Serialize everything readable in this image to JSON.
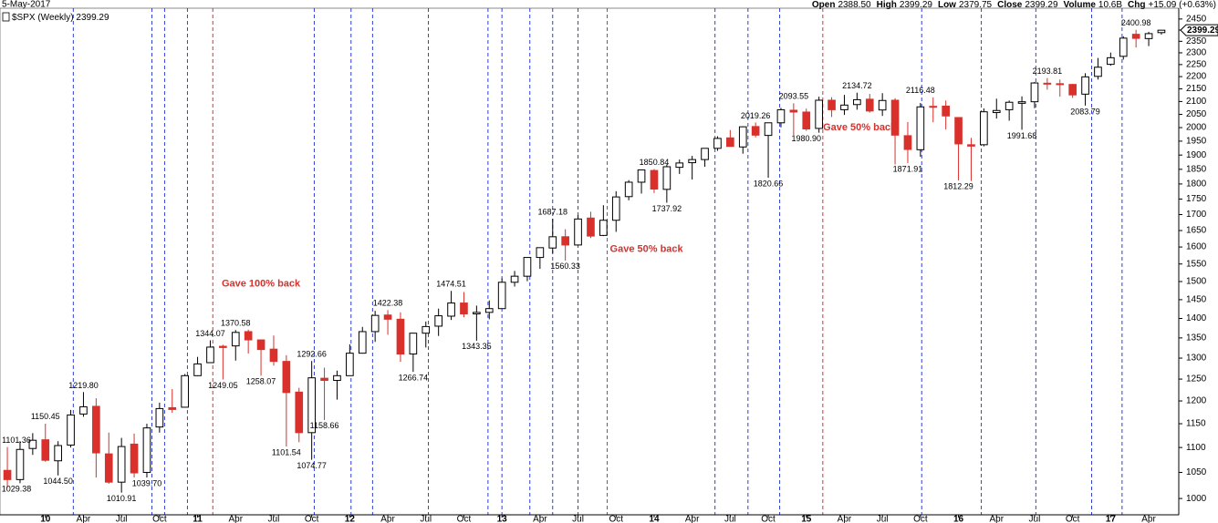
{
  "chart_data": {
    "type": "candlestick",
    "date": "5-May-2017",
    "header": [
      {
        "name": "Open",
        "value": "2388.50"
      },
      {
        "name": "High",
        "value": "2399.29"
      },
      {
        "name": "Low",
        "value": "2379.75"
      },
      {
        "name": "Close",
        "value": "2399.29"
      },
      {
        "name": "Volume",
        "value": "10.6B"
      },
      {
        "name": "Chg",
        "value": "+15.09 (+0.63%)"
      }
    ],
    "legend": "$SPX (Weekly)",
    "last_price": 2399.29,
    "log_scale": true,
    "up_color": "#000000",
    "down_color": "#d9302c",
    "categories": [
      "2009-10",
      "2009-11",
      "2009-12",
      "2010-01",
      "2010-02",
      "2010-03",
      "2010-04",
      "2010-05",
      "2010-06",
      "2010-07",
      "2010-08",
      "2010-09",
      "2010-10",
      "2010-11",
      "2010-12",
      "2011-01",
      "2011-02",
      "2011-03",
      "2011-04",
      "2011-05",
      "2011-06",
      "2011-07",
      "2011-08",
      "2011-09",
      "2011-10",
      "2011-11",
      "2011-12",
      "2012-01",
      "2012-02",
      "2012-03",
      "2012-04",
      "2012-05",
      "2012-06",
      "2012-07",
      "2012-08",
      "2012-09",
      "2012-10",
      "2012-11",
      "2012-12",
      "2013-01",
      "2013-02",
      "2013-03",
      "2013-04",
      "2013-05",
      "2013-06",
      "2013-07",
      "2013-08",
      "2013-09",
      "2013-10",
      "2013-11",
      "2013-12",
      "2014-01",
      "2014-02",
      "2014-03",
      "2014-04",
      "2014-05",
      "2014-06",
      "2014-07",
      "2014-08",
      "2014-09",
      "2014-10",
      "2014-11",
      "2014-12",
      "2015-01",
      "2015-02",
      "2015-03",
      "2015-04",
      "2015-05",
      "2015-06",
      "2015-07",
      "2015-08",
      "2015-09",
      "2015-10",
      "2015-11",
      "2015-12",
      "2016-01",
      "2016-02",
      "2016-03",
      "2016-04",
      "2016-05",
      "2016-06",
      "2016-07",
      "2016-08",
      "2016-09",
      "2016-10",
      "2016-11",
      "2016-12",
      "2017-01",
      "2017-02",
      "2017-03",
      "2017-04",
      "2017-05"
    ],
    "open": [
      1054,
      1036,
      1098,
      1116,
      1073,
      1105,
      1171,
      1188,
      1087,
      1031,
      1107,
      1050,
      1143,
      1185,
      1186,
      1258,
      1289,
      1329,
      1330,
      1366,
      1345,
      1322,
      1292,
      1220,
      1131,
      1252,
      1247,
      1258,
      1312,
      1366,
      1409,
      1398,
      1310,
      1362,
      1380,
      1406,
      1441,
      1412,
      1416,
      1426,
      1498,
      1515,
      1569,
      1597,
      1631,
      1606,
      1689,
      1635,
      1682,
      1758,
      1806,
      1846,
      1782,
      1857,
      1873,
      1884,
      1924,
      1962,
      1929,
      2004,
      1971,
      2018,
      2066,
      2059,
      1997,
      2105,
      2068,
      2088,
      2109,
      2067,
      2105,
      1970,
      1919,
      2081,
      2082,
      2038,
      1937,
      1937,
      2057,
      2068,
      2093,
      2099,
      2173,
      2171,
      2168,
      2129,
      2201,
      2251,
      2285,
      2381,
      2362,
      2388.5
    ],
    "high": [
      1101,
      1113,
      1130,
      1150,
      1113,
      1180,
      1220,
      1206,
      1131,
      1120,
      1129,
      1150,
      1196,
      1227,
      1262,
      1303,
      1344,
      1333,
      1370,
      1371,
      1346,
      1356,
      1307,
      1230,
      1293,
      1277,
      1270,
      1334,
      1378,
      1420,
      1422,
      1416,
      1363,
      1392,
      1426,
      1474,
      1471,
      1434,
      1448,
      1509,
      1530,
      1570,
      1597,
      1687,
      1654,
      1698,
      1709,
      1730,
      1776,
      1813,
      1849,
      1851,
      1867,
      1884,
      1897,
      1925,
      1968,
      1991,
      2005,
      2019,
      2018,
      2075,
      2093,
      2072,
      2119,
      2117,
      2126,
      2135,
      2130,
      2133,
      2113,
      2021,
      2094,
      2116,
      2104,
      2038,
      1962,
      2073,
      2111,
      2104,
      2120,
      2178,
      2194,
      2188,
      2170,
      2214,
      2278,
      2301,
      2372,
      2401,
      2392,
      2399.29
    ],
    "low": [
      1020,
      1029,
      1085,
      1071,
      1044,
      1100,
      1165,
      1040,
      1028,
      1011,
      1040,
      1040,
      1131,
      1174,
      1186,
      1257,
      1289,
      1249,
      1294,
      1311,
      1258,
      1282,
      1102,
      1111,
      1075,
      1158,
      1203,
      1258,
      1311,
      1340,
      1358,
      1291,
      1267,
      1326,
      1355,
      1396,
      1403,
      1343,
      1398,
      1426,
      1486,
      1501,
      1536,
      1581,
      1560,
      1604,
      1627,
      1633,
      1646,
      1746,
      1768,
      1770,
      1738,
      1834,
      1815,
      1859,
      1915,
      1930,
      1905,
      1964,
      1821,
      2001,
      1972,
      1988,
      1981,
      2040,
      2048,
      2068,
      2057,
      2044,
      1867,
      1872,
      1894,
      2020,
      1993,
      1812,
      1810,
      1931,
      2034,
      2026,
      1992,
      2074,
      2147,
      2119,
      2114,
      2084,
      2188,
      2245,
      2271,
      2323,
      2329,
      2379.75
    ],
    "close": [
      1036,
      1096,
      1115,
      1074,
      1104,
      1169,
      1187,
      1089,
      1031,
      1102,
      1049,
      1141,
      1183,
      1181,
      1258,
      1286,
      1327,
      1326,
      1364,
      1345,
      1321,
      1292,
      1219,
      1131,
      1253,
      1247,
      1258,
      1312,
      1366,
      1408,
      1398,
      1310,
      1362,
      1379,
      1407,
      1441,
      1412,
      1416,
      1426,
      1498,
      1515,
      1569,
      1598,
      1631,
      1606,
      1686,
      1633,
      1682,
      1757,
      1806,
      1848,
      1783,
      1859,
      1872,
      1884,
      1924,
      1960,
      1931,
      2003,
      1972,
      2018,
      2068,
      2059,
      1995,
      2105,
      2068,
      2086,
      2107,
      2063,
      2104,
      1972,
      1920,
      2079,
      2080,
      2044,
      1940,
      1932,
      2060,
      2065,
      2097,
      2099,
      2174,
      2171,
      2168,
      2126,
      2199,
      2239,
      2279,
      2364,
      2363,
      2384,
      2399.29
    ],
    "xlim": [
      -0.58,
      92.37
    ],
    "xticks": [
      {
        "value": 3,
        "label": "10"
      },
      {
        "value": 6,
        "label": "Apr"
      },
      {
        "value": 9,
        "label": "Jul"
      },
      {
        "value": 12,
        "label": "Oct"
      },
      {
        "value": 15,
        "label": "11"
      },
      {
        "value": 18,
        "label": "Apr"
      },
      {
        "value": 21,
        "label": "Jul"
      },
      {
        "value": 24,
        "label": "Oct"
      },
      {
        "value": 27,
        "label": "12"
      },
      {
        "value": 30,
        "label": "Apr"
      },
      {
        "value": 33,
        "label": "Jul"
      },
      {
        "value": 36,
        "label": "Oct"
      },
      {
        "value": 39,
        "label": "13"
      },
      {
        "value": 42,
        "label": "Apr"
      },
      {
        "value": 45,
        "label": "Jul"
      },
      {
        "value": 48,
        "label": "Oct"
      },
      {
        "value": 51,
        "label": "14"
      },
      {
        "value": 54,
        "label": "Apr"
      },
      {
        "value": 57,
        "label": "Jul"
      },
      {
        "value": 60,
        "label": "Oct"
      },
      {
        "value": 63,
        "label": "15"
      },
      {
        "value": 66,
        "label": "Apr"
      },
      {
        "value": 69,
        "label": "Jul"
      },
      {
        "value": 72,
        "label": "Oct"
      },
      {
        "value": 75,
        "label": "16"
      },
      {
        "value": 78,
        "label": "Apr"
      },
      {
        "value": 81,
        "label": "Jul"
      },
      {
        "value": 84,
        "label": "Oct"
      },
      {
        "value": 87,
        "label": "17"
      },
      {
        "value": 90,
        "label": "Apr"
      }
    ],
    "ylim": [
      970,
      2500
    ],
    "yticks": [
      1000,
      1050,
      1100,
      1150,
      1200,
      1250,
      1300,
      1350,
      1400,
      1450,
      1500,
      1550,
      1600,
      1650,
      1700,
      1750,
      1800,
      1850,
      1900,
      1950,
      2000,
      2050,
      2100,
      2150,
      2200,
      2250,
      2300,
      2350,
      2400,
      2450
    ],
    "event_lines": [
      {
        "x": 5.2,
        "color": "#2f3fd8"
      },
      {
        "x": 11.4,
        "color": "#2f3fd8"
      },
      {
        "x": 12.4,
        "color": "#2f3fd8"
      },
      {
        "x": 14.2,
        "color": "#2f3fd8"
      },
      {
        "x": 16.2,
        "color": "#d9302c"
      },
      {
        "x": 24.2,
        "color": "#2f3fd8"
      },
      {
        "x": 27.1,
        "color": "#2f3fd8"
      },
      {
        "x": 28.8,
        "color": "#2f3fd8"
      },
      {
        "x": 33.2,
        "color": "#2f3fd8"
      },
      {
        "x": 37.9,
        "color": "#2f3fd8"
      },
      {
        "x": 39.0,
        "color": "#2f3fd8"
      },
      {
        "x": 41.2,
        "color": "#2f3fd8"
      },
      {
        "x": 43.0,
        "color": "#2f3fd8"
      },
      {
        "x": 45.0,
        "color": "#2f3fd8"
      },
      {
        "x": 47.3,
        "color": "#d9302c"
      },
      {
        "x": 55.8,
        "color": "#2f3fd8"
      },
      {
        "x": 58.4,
        "color": "#2f3fd8"
      },
      {
        "x": 60.9,
        "color": "#2f3fd8"
      },
      {
        "x": 64.3,
        "color": "#d9302c"
      },
      {
        "x": 72.1,
        "color": "#2f3fd8"
      },
      {
        "x": 76.8,
        "color": "#2f3fd8"
      },
      {
        "x": 81.1,
        "color": "#2f3fd8"
      },
      {
        "x": 85.5,
        "color": "#2f3fd8"
      },
      {
        "x": 87.9,
        "color": "#2f3fd8"
      }
    ],
    "annotations": [
      {
        "x": 0,
        "value": 1029.38
      },
      {
        "x": 0,
        "value": 1101.36
      },
      {
        "x": 3,
        "value": 1150.45
      },
      {
        "x": 4,
        "value": 1044.5,
        "label": "1044.50"
      },
      {
        "x": 6,
        "value": 1219.8,
        "label": "1219.80"
      },
      {
        "x": 9,
        "value": 1010.91
      },
      {
        "x": 11,
        "value": 1039.7,
        "label": "1039.70"
      },
      {
        "x": 16,
        "value": 1344.07
      },
      {
        "x": 17,
        "value": 1249.05
      },
      {
        "x": 18,
        "value": 1370.58
      },
      {
        "x": 20,
        "value": 1258.07
      },
      {
        "x": 22,
        "value": 1101.54
      },
      {
        "x": 24,
        "value": 1074.77
      },
      {
        "x": 24,
        "value": 1292.66
      },
      {
        "x": 25,
        "value": 1158.66
      },
      {
        "x": 30,
        "value": 1422.38
      },
      {
        "x": 32,
        "value": 1266.74
      },
      {
        "x": 35,
        "value": 1474.51
      },
      {
        "x": 37,
        "value": 1343.35
      },
      {
        "x": 43,
        "value": 1687.18
      },
      {
        "x": 44,
        "value": 1560.33
      },
      {
        "x": 51,
        "value": 1850.84
      },
      {
        "x": 52,
        "value": 1737.92
      },
      {
        "x": 59,
        "value": 2019.26
      },
      {
        "x": 60,
        "value": 1820.66
      },
      {
        "x": 62,
        "value": 2093.55
      },
      {
        "x": 63,
        "value": 1980.9,
        "label": "1980.90"
      },
      {
        "x": 67,
        "value": 2134.72
      },
      {
        "x": 71,
        "value": 1871.91
      },
      {
        "x": 72,
        "value": 2116.48
      },
      {
        "x": 75,
        "value": 1812.29
      },
      {
        "x": 80,
        "value": 1991.68
      },
      {
        "x": 82,
        "value": 2193.81
      },
      {
        "x": 85,
        "value": 2083.79
      },
      {
        "x": 89,
        "value": 2400.98
      }
    ],
    "notes": [
      {
        "text": "Gave 100% back",
        "x": 20,
        "y": 1494
      },
      {
        "text": "Gave 50% back",
        "x": 50.4,
        "y": 1593
      },
      {
        "text": "Gave 50% back",
        "x": 67.2,
        "y": 1999
      }
    ]
  }
}
